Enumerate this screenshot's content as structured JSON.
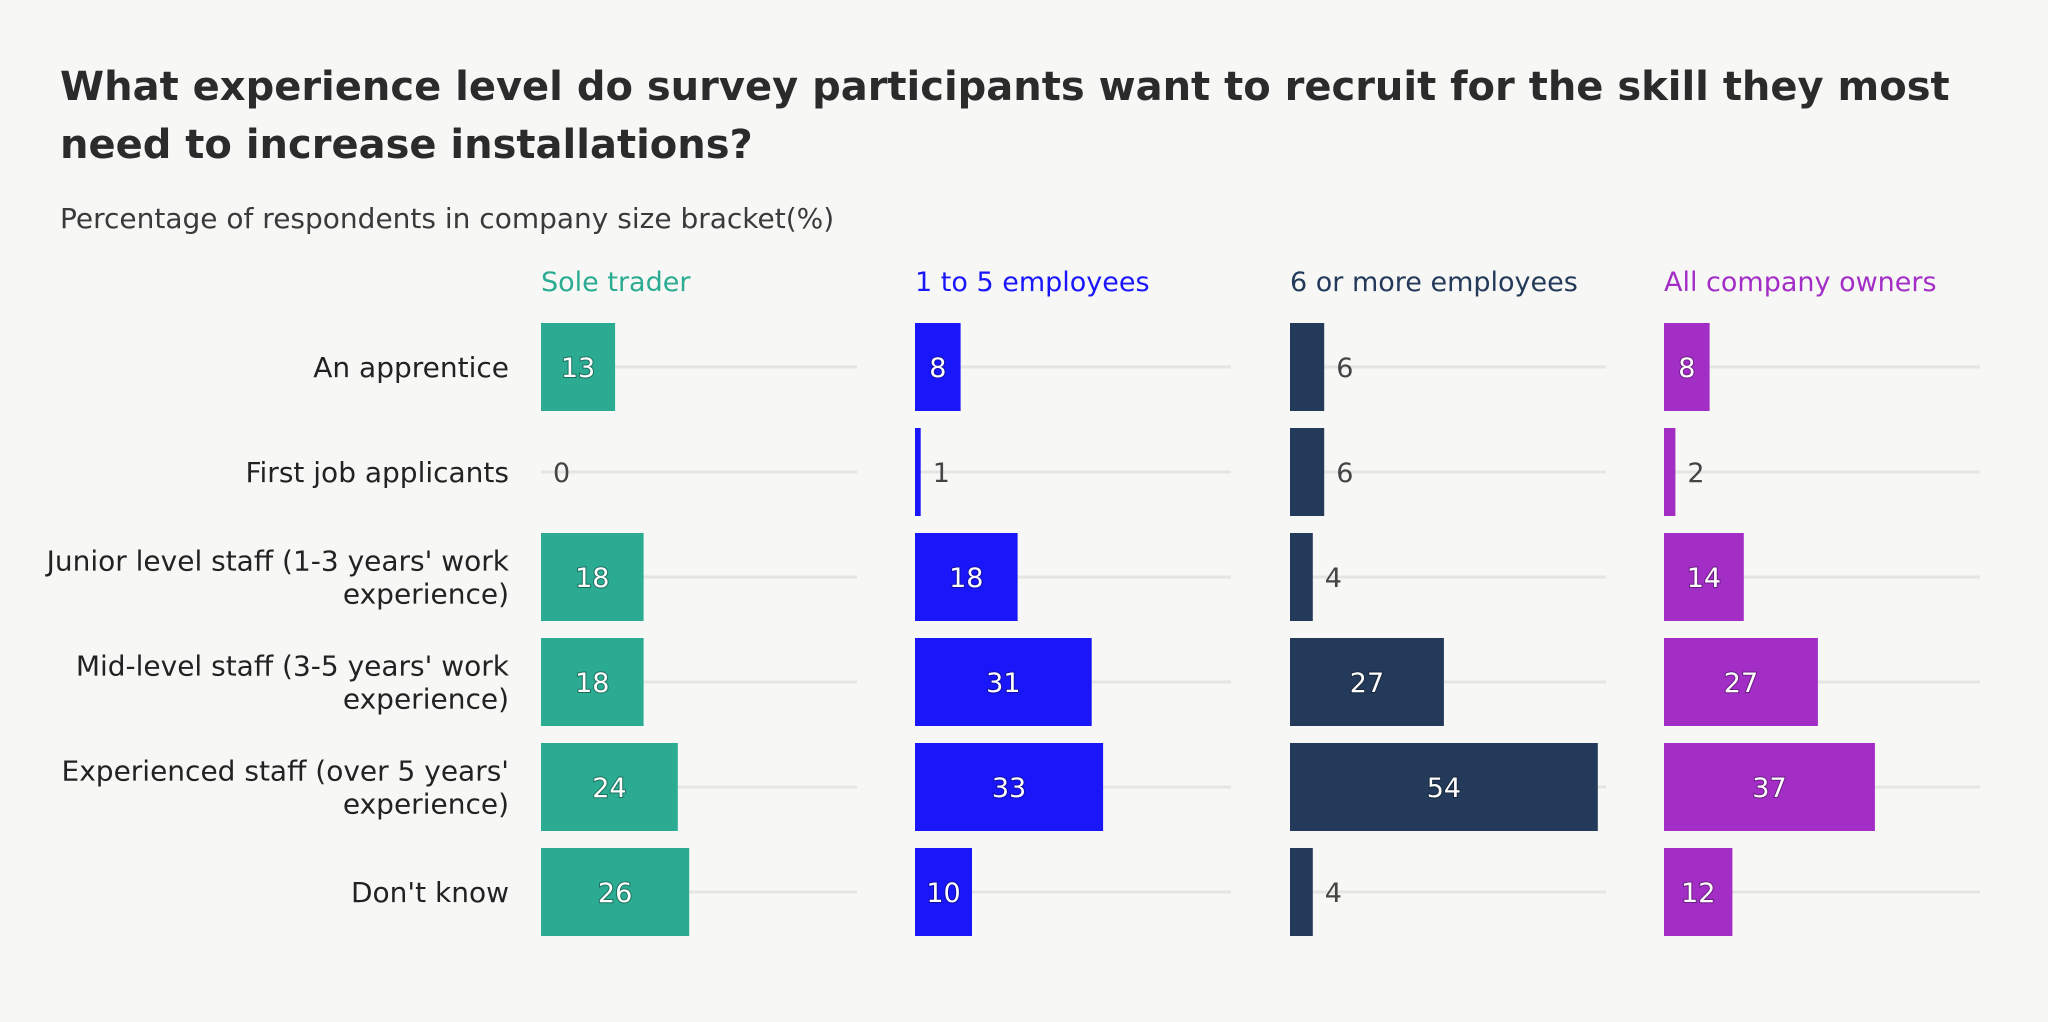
{
  "header": {
    "title": "What experience level do survey participants want to recruit for the skill they most need to increase installations?",
    "subtitle": "Percentage of respondents in company size bracket(%)"
  },
  "chart_data": {
    "type": "bar",
    "orientation": "horizontal",
    "layout": "small-multiples",
    "categories": [
      "An apprentice",
      "First job applicants",
      "Junior level staff (1-3 years' work experience)",
      "Mid-level staff (3-5 years' work experience)",
      "Experienced staff (over 5 years' experience)",
      "Don't know"
    ],
    "category_lines": [
      [
        "An apprentice"
      ],
      [
        "First job applicants"
      ],
      [
        "Junior level staff (1-3 years' work",
        "experience)"
      ],
      [
        "Mid-level staff (3-5 years' work",
        "experience)"
      ],
      [
        "Experienced staff (over 5 years'",
        "experience)"
      ],
      [
        "Don't know"
      ]
    ],
    "series": [
      {
        "name": "Sole trader",
        "color": "#2bab91",
        "values": [
          13,
          0,
          18,
          18,
          24,
          26
        ]
      },
      {
        "name": "1 to 5 employees",
        "color": "#1a16fa",
        "values": [
          8,
          1,
          18,
          31,
          33,
          10
        ]
      },
      {
        "name": "6 or more employees",
        "color": "#243a5a",
        "values": [
          6,
          6,
          4,
          27,
          54,
          4
        ]
      },
      {
        "name": "All company owners",
        "color": "#a32ec6",
        "values": [
          8,
          2,
          14,
          27,
          37,
          12
        ]
      }
    ],
    "xlim": [
      0,
      55
    ],
    "grid": true,
    "legend": "panel titles"
  }
}
